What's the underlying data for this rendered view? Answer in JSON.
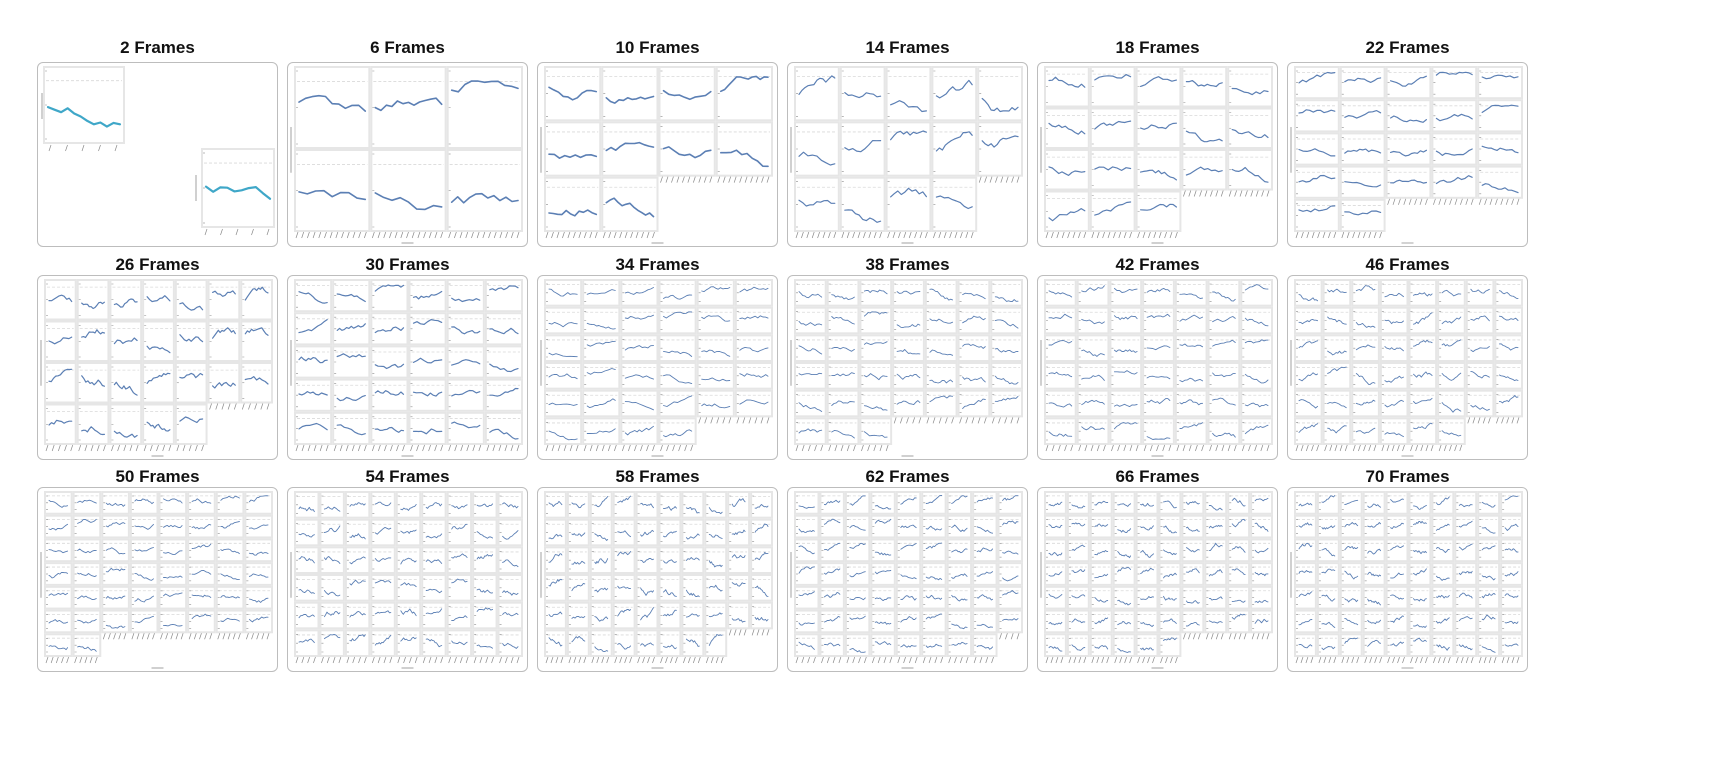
{
  "figure": {
    "panel_titles": [
      "2 Frames",
      "6 Frames",
      "10 Frames",
      "14 Frames",
      "18 Frames",
      "22 Frames",
      "26 Frames",
      "30 Frames",
      "34 Frames",
      "38 Frames",
      "42 Frames",
      "46 Frames",
      "50 Frames",
      "54 Frames",
      "58 Frames",
      "62 Frames",
      "66 Frames",
      "70 Frames"
    ]
  },
  "colors": {
    "line_first_panel": "#3fa7c8",
    "line_default": "#5b7fb4",
    "panel_border": "#bdbdbd",
    "grid": "#e6e6e6",
    "dashed_ref": "#d9d9d9",
    "axis_tick": "#8a8a8a",
    "title": "#111111"
  },
  "chart_data": [
    {
      "type": "line",
      "title": "2 Frames",
      "frames": 2,
      "grid_columns": 2,
      "series_color": "#3fa7c8",
      "grid": true,
      "layout": "diagonal"
    },
    {
      "type": "line",
      "title": "6 Frames",
      "frames": 6,
      "grid_columns": 3,
      "series_color": "#5b7fb4",
      "grid": true
    },
    {
      "type": "line",
      "title": "10 Frames",
      "frames": 10,
      "grid_columns": 4,
      "series_color": "#5b7fb4",
      "grid": true
    },
    {
      "type": "line",
      "title": "14 Frames",
      "frames": 14,
      "grid_columns": 5,
      "series_color": "#5b7fb4",
      "grid": true
    },
    {
      "type": "line",
      "title": "18 Frames",
      "frames": 18,
      "grid_columns": 5,
      "series_color": "#5b7fb4",
      "grid": true
    },
    {
      "type": "line",
      "title": "22 Frames",
      "frames": 22,
      "grid_columns": 5,
      "series_color": "#5b7fb4",
      "grid": true
    },
    {
      "type": "line",
      "title": "26 Frames",
      "frames": 26,
      "grid_columns": 7,
      "series_color": "#5b7fb4",
      "grid": true
    },
    {
      "type": "line",
      "title": "30 Frames",
      "frames": 30,
      "grid_columns": 6,
      "series_color": "#5b7fb4",
      "grid": true
    },
    {
      "type": "line",
      "title": "34 Frames",
      "frames": 34,
      "grid_columns": 6,
      "series_color": "#5b7fb4",
      "grid": true
    },
    {
      "type": "line",
      "title": "38 Frames",
      "frames": 38,
      "grid_columns": 7,
      "series_color": "#5b7fb4",
      "grid": true
    },
    {
      "type": "line",
      "title": "42 Frames",
      "frames": 42,
      "grid_columns": 7,
      "series_color": "#5b7fb4",
      "grid": true
    },
    {
      "type": "line",
      "title": "46 Frames",
      "frames": 46,
      "grid_columns": 8,
      "series_color": "#5b7fb4",
      "grid": true
    },
    {
      "type": "line",
      "title": "50 Frames",
      "frames": 50,
      "grid_columns": 8,
      "series_color": "#5b7fb4",
      "grid": true
    },
    {
      "type": "line",
      "title": "54 Frames",
      "frames": 54,
      "grid_columns": 9,
      "series_color": "#5b7fb4",
      "grid": true
    },
    {
      "type": "line",
      "title": "58 Frames",
      "frames": 58,
      "grid_columns": 10,
      "series_color": "#5b7fb4",
      "grid": true
    },
    {
      "type": "line",
      "title": "62 Frames",
      "frames": 62,
      "grid_columns": 9,
      "series_color": "#5b7fb4",
      "grid": true
    },
    {
      "type": "line",
      "title": "66 Frames",
      "frames": 66,
      "grid_columns": 10,
      "series_color": "#5b7fb4",
      "grid": true
    },
    {
      "type": "line",
      "title": "70 Frames",
      "frames": 70,
      "grid_columns": 10,
      "series_color": "#5b7fb4",
      "grid": true
    }
  ]
}
